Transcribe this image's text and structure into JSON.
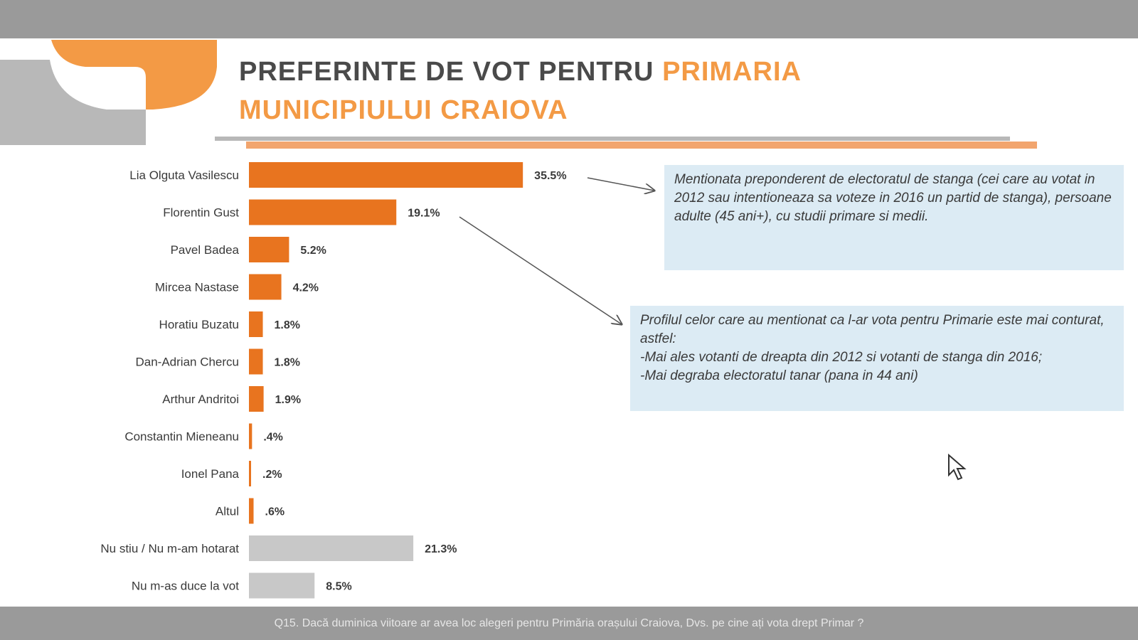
{
  "title": {
    "part1": "PREFERINTE DE VOT PENTRU ",
    "part2": "PRIMARIA",
    "line2": "MUNICIPIULUI CRAIOVA"
  },
  "notes": {
    "note1": "Mentionata preponderent de electoratul de stanga (cei care au votat in 2012 sau intentioneaza sa voteze in 2016 un partid de stanga), persoane adulte (45 ani+), cu studii primare si medii.",
    "note2_lines": [
      "Profilul celor care au mentionat ca l-ar vota pentru Primarie este mai conturat, astfel:",
      "-Mai ales votanti de dreapta din 2012 si votanti de stanga din 2016;",
      "-Mai degraba electoratul tanar (pana in 44 ani)"
    ]
  },
  "footnote": "Q15. Dacă duminica viitoare ar avea loc alegeri pentru Primăria orașului Craiova, Dvs. pe cine ați vota drept Primar ?",
  "colors": {
    "candidate_bar": "#e8741f",
    "other_bar": "#c8c8c8",
    "title_orange": "#f39a45",
    "note_bg": "#dcebf4"
  },
  "chart_data": {
    "type": "bar",
    "orientation": "horizontal",
    "categories": [
      "Lia Olguta Vasilescu",
      "Florentin Gust",
      "Pavel Badea",
      "Mircea Nastase",
      "Horatiu Buzatu",
      "Dan-Adrian Chercu",
      "Arthur Andritoi",
      "Constantin Mieneanu",
      "Ionel Pana",
      "Altul",
      "Nu stiu / Nu m-am hotarat",
      "Nu m-as duce la vot"
    ],
    "values": [
      35.5,
      19.1,
      5.2,
      4.2,
      1.8,
      1.8,
      1.9,
      0.4,
      0.2,
      0.6,
      21.3,
      8.5
    ],
    "value_labels": [
      "35.5%",
      "19.1%",
      "5.2%",
      "4.2%",
      "1.8%",
      "1.8%",
      "1.9%",
      ".4%",
      ".2%",
      ".6%",
      "21.3%",
      "8.5%"
    ],
    "bar_groups": [
      "candidate",
      "candidate",
      "candidate",
      "candidate",
      "candidate",
      "candidate",
      "candidate",
      "candidate",
      "candidate",
      "candidate",
      "other",
      "other"
    ],
    "xlim": [
      0,
      40
    ],
    "grid": false,
    "legend": "none"
  }
}
